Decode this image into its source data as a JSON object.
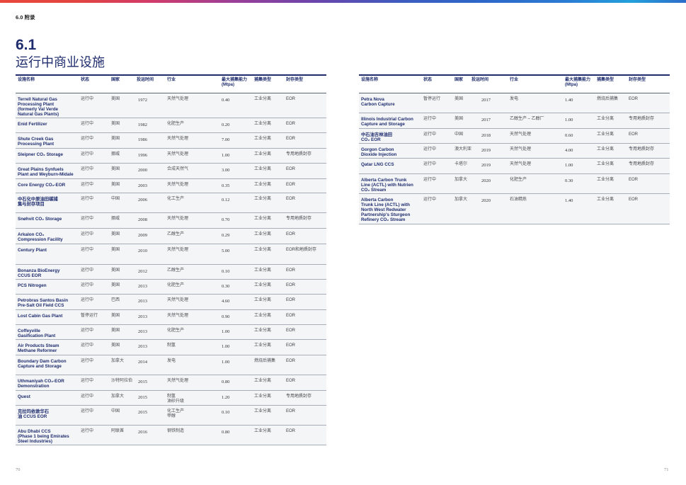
{
  "header": {
    "section": "6.0 附录"
  },
  "title": {
    "number": "6.1",
    "text": "运行中商业设施"
  },
  "columns": [
    "设施名称",
    "状态",
    "国家",
    "投运时间",
    "行业",
    "最大捕集能力\n(Mtpa)",
    "捕集类型",
    "封存类型"
  ],
  "tables": [
    {
      "rows": [
        {
          "name": "Terrell Natural Gas\nProcessing Plant\n(formerly Val Verde\nNatural Gas Plants)",
          "status": "运行中",
          "country": "美国",
          "year": "1972",
          "industry": "天然气处理",
          "capacity": "0.40",
          "capture": "工业分离",
          "storage": "EOR"
        },
        {
          "name": "Enid Fertilizer",
          "status": "运行中",
          "country": "美国",
          "year": "1982",
          "industry": "化肥生产",
          "capacity": "0.20",
          "capture": "工业分离",
          "storage": "EOR"
        },
        {
          "name": "Shute Creek Gas\nProcessing Plant",
          "status": "运行中",
          "country": "美国",
          "year": "1986",
          "industry": "天然气处理",
          "capacity": "7.00",
          "capture": "工业分离",
          "storage": "EOR"
        },
        {
          "name": "Sleipner CO₂ Storage",
          "status": "运行中",
          "country": "挪威",
          "year": "1996",
          "industry": "天然气处理",
          "capacity": "1.00",
          "capture": "工业分离",
          "storage": "专用地质封存"
        },
        {
          "name": "Great Plains Synfuels\nPlant and Weyburn-Midale",
          "status": "运行中",
          "country": "美国",
          "year": "2000",
          "industry": "合成天然气",
          "capacity": "3.00",
          "capture": "工业分离",
          "storage": "EOR"
        },
        {
          "name": "Core Energy CO₂-EOR",
          "status": "运行中",
          "country": "美国",
          "year": "2003",
          "industry": "天然气处理",
          "capacity": "0.35",
          "capture": "工业分离",
          "storage": "EOR"
        },
        {
          "name": "中石化中原油田碳捕\n集与封存项目",
          "status": "运行中",
          "country": "中国",
          "year": "2006",
          "industry": "化工生产",
          "capacity": "0.12",
          "capture": "工业分离",
          "storage": "EOR"
        },
        {
          "name": "Snøhvit CO₂ Storage",
          "status": "运行中",
          "country": "挪威",
          "year": "2008",
          "industry": "天然气处理",
          "capacity": "0.70",
          "capture": "工业分离",
          "storage": "专用地质封存"
        },
        {
          "name": "Arkalon CO₂\nCompression Facility",
          "status": "运行中",
          "country": "美国",
          "year": "2009",
          "industry": "乙醇生产",
          "capacity": "0.29",
          "capture": "工业分离",
          "storage": "EOR"
        },
        {
          "name": "Century Plant",
          "status": "运行中",
          "country": "美国",
          "year": "2010",
          "industry": "天然气处理",
          "capacity": "5.00",
          "capture": "工业分离",
          "storage": "EOR和地质封存"
        },
        {
          "name": "Bonanza BioEnergy\nCCUS EOR",
          "status": "运行中",
          "country": "美国",
          "year": "2012",
          "industry": "乙醇生产",
          "capacity": "0.10",
          "capture": "工业分离",
          "storage": "EOR"
        },
        {
          "name": "PCS Nitrogen",
          "status": "运行中",
          "country": "美国",
          "year": "2013",
          "industry": "化肥生产",
          "capacity": "0.30",
          "capture": "工业分离",
          "storage": "EOR"
        },
        {
          "name": "Petrobras Santos Basin\nPre-Salt Oil Field CCS",
          "status": "运行中",
          "country": "巴西",
          "year": "2013",
          "industry": "天然气处理",
          "capacity": "4.60",
          "capture": "工业分离",
          "storage": "EOR"
        },
        {
          "name": "Lost Cabin Gas Plant",
          "status": "暂停运行",
          "country": "美国",
          "year": "2013",
          "industry": "天然气处理",
          "capacity": "0.90",
          "capture": "工业分离",
          "storage": "EOR"
        },
        {
          "name": "Coffeyville\nGasification Plant",
          "status": "运行中",
          "country": "美国",
          "year": "2013",
          "industry": "化肥生产",
          "capacity": "1.00",
          "capture": "工业分离",
          "storage": "EOR"
        },
        {
          "name": "Air Products Steam\nMethane Reformer",
          "status": "运行中",
          "country": "美国",
          "year": "2013",
          "industry": "制氢",
          "capacity": "1.00",
          "capture": "工业分离",
          "storage": "EOR"
        },
        {
          "name": "Boundary Dam Carbon\nCapture and Storage",
          "status": "运行中",
          "country": "加拿大",
          "year": "2014",
          "industry": "发电",
          "capacity": "1.00",
          "capture": "燃烧后捕集",
          "storage": "EOR"
        },
        {
          "name": "Uthmaniyah CO₂-EOR\nDemonstration",
          "status": "运行中",
          "country": "沙特阿拉伯",
          "year": "2015",
          "industry": "天然气处理",
          "capacity": "0.80",
          "capture": "工业分离",
          "storage": "EOR"
        },
        {
          "name": "Quest",
          "status": "运行中",
          "country": "加拿大",
          "year": "2015",
          "industry": "制氢\n油砂升级",
          "capacity": "1.20",
          "capture": "工业分离",
          "storage": "专用地质封存"
        },
        {
          "name": "克拉玛依敦华石\n油 CCUS EOR",
          "status": "运行中",
          "country": "中国",
          "year": "2015",
          "industry": "化工生产\n甲醇",
          "capacity": "0.10",
          "capture": "工业分离",
          "storage": "EOR"
        },
        {
          "name": "Abu Dhabi CCS\n(Phase 1 being Emirates\nSteel Industries)",
          "status": "运行中",
          "country": "阿联酋",
          "year": "2016",
          "industry": "钢铁制造",
          "capacity": "0.80",
          "capture": "工业分离",
          "storage": "EOR"
        }
      ]
    },
    {
      "rows": [
        {
          "name": "Petra Nova\nCarbon Capture",
          "status": "暂停运行",
          "country": "美国",
          "year": "2017",
          "industry": "发电",
          "capacity": "1.40",
          "capture": "燃烧后捕集",
          "storage": "EOR"
        },
        {
          "name": "Illinois Industrial Carbon\nCapture and Storage",
          "status": "运行中",
          "country": "美国",
          "year": "2017",
          "industry": "乙醇生产 – 乙醇厂",
          "capacity": "1.00",
          "capture": "工业分离",
          "storage": "专用地质封存"
        },
        {
          "name": "中石油吉林油田\nCO₂ EOR",
          "status": "运行中",
          "country": "中国",
          "year": "2018",
          "industry": "天然气处理",
          "capacity": "0.60",
          "capture": "工业分离",
          "storage": "EOR"
        },
        {
          "name": "Gorgon Carbon\nDioxide Injection",
          "status": "运行中",
          "country": "澳大利亚",
          "year": "2019",
          "industry": "天然气处理",
          "capacity": "4.00",
          "capture": "工业分离",
          "storage": "专用地质封存"
        },
        {
          "name": "Qatar LNG CCS",
          "status": "运行中",
          "country": "卡塔尔",
          "year": "2019",
          "industry": "天然气处理",
          "capacity": "1.00",
          "capture": "工业分离",
          "storage": "专用地质封存"
        },
        {
          "name": "Alberta Carbon Trunk\nLine (ACTL) with Nutrien\nCO₂ Stream",
          "status": "运行中",
          "country": "加拿大",
          "year": "2020",
          "industry": "化肥生产",
          "capacity": "0.30",
          "capture": "工业分离",
          "storage": "EOR"
        },
        {
          "name": "Alberta Carbon\nTrunk Line (ACTL) with\nNorth West Redwater\nPartnership's Sturgeon\nRefinery CO₂ Stream",
          "status": "运行中",
          "country": "加拿大",
          "year": "2020",
          "industry": "石油精炼",
          "capacity": "1.40",
          "capture": "工业分离",
          "storage": "EOR"
        }
      ]
    }
  ],
  "page_numbers": {
    "left": "70",
    "right": "71"
  },
  "colors": {
    "navy": "#1f2d6e",
    "row_background": "#f4f5f7",
    "rule": "#a7aeb8"
  }
}
